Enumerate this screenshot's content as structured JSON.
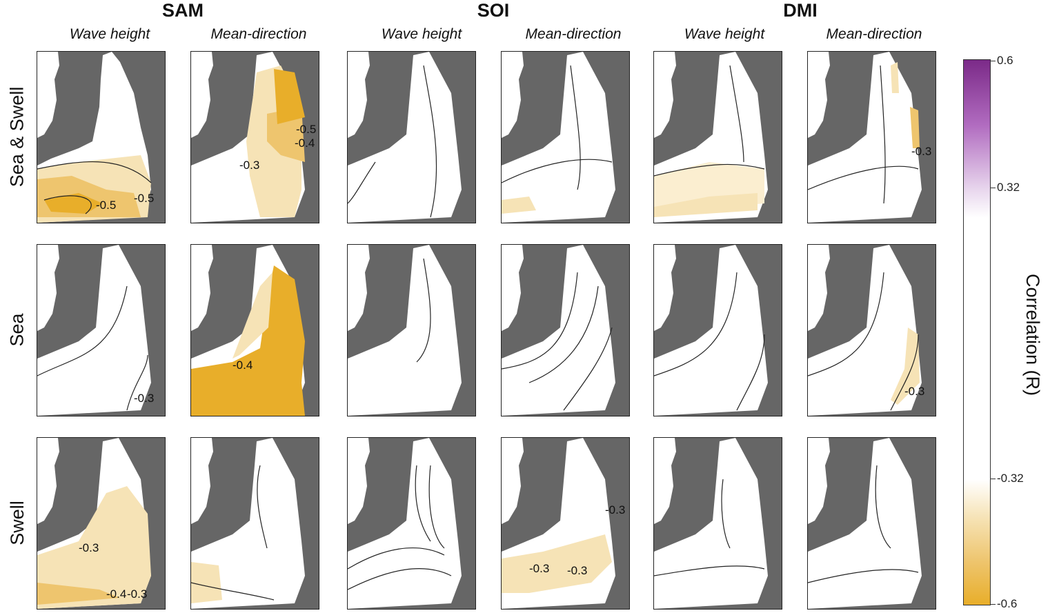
{
  "groups": {
    "sam": "SAM",
    "soi": "SOI",
    "dmi": "DMI"
  },
  "subtitles": {
    "wave_height": "Wave height",
    "mean_direction": "Mean-direction"
  },
  "rows": {
    "sea_swell": "Sea & Swell",
    "sea": "Sea",
    "swell": "Swell"
  },
  "colorbar": {
    "title": "Correlation (R)",
    "ticks": [
      "0.6",
      "0.32",
      "-0.32",
      "-0.6"
    ],
    "colors": {
      "positive": "#7b2a88",
      "neutral": "#ffffff",
      "negative": "#e8ae2a",
      "land": "#666666"
    }
  },
  "contour_labels": {
    "sam_wh_ss": [
      "-0.5",
      "-0.5"
    ],
    "sam_md_ss": [
      "-0.3",
      "-0.5",
      "-0.4"
    ],
    "sam_md_sea": [
      "-0.4"
    ],
    "sam_wh_sea": [
      "-0.3"
    ],
    "dmi_md_ss": [
      "-0.3"
    ],
    "dmi_md_sea": [
      "-0.3"
    ],
    "sam_wh_swell": [
      "-0.3",
      "-0.4",
      "-0.3"
    ],
    "soi_md_swell": [
      "-0.3",
      "-0.3",
      "-0.3"
    ]
  }
}
